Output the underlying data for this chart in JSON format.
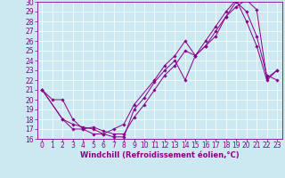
{
  "xlabel": "Windchill (Refroidissement éolien,°C)",
  "bg_color": "#cce8f0",
  "line_color": "#880088",
  "xlim": [
    -0.5,
    23.5
  ],
  "ylim": [
    16,
    30
  ],
  "xticks": [
    0,
    1,
    2,
    3,
    4,
    5,
    6,
    7,
    8,
    9,
    10,
    11,
    12,
    13,
    14,
    15,
    16,
    17,
    18,
    19,
    20,
    21,
    22,
    23
  ],
  "yticks": [
    16,
    17,
    18,
    19,
    20,
    21,
    22,
    23,
    24,
    25,
    26,
    27,
    28,
    29,
    30
  ],
  "line1_x": [
    0,
    1,
    2,
    3,
    4,
    5,
    6,
    7,
    8,
    9,
    10,
    11,
    12,
    13,
    14,
    15,
    16,
    17,
    18,
    19,
    20,
    21,
    22,
    23
  ],
  "line1_y": [
    21.0,
    20.0,
    20.0,
    18.0,
    17.0,
    16.5,
    16.5,
    16.2,
    16.2,
    19.0,
    20.2,
    21.8,
    23.0,
    24.0,
    22.0,
    24.5,
    25.5,
    26.5,
    28.5,
    29.5,
    30.2,
    29.2,
    22.2,
    23.0
  ],
  "line2_x": [
    0,
    2,
    3,
    4,
    5,
    6,
    7,
    8,
    9,
    10,
    11,
    12,
    13,
    14,
    15,
    16,
    17,
    18,
    19,
    20,
    21,
    22,
    23
  ],
  "line2_y": [
    21.0,
    18.0,
    17.0,
    17.0,
    17.2,
    16.8,
    16.5,
    16.5,
    18.2,
    19.5,
    21.0,
    22.5,
    23.5,
    25.0,
    24.5,
    26.0,
    27.5,
    29.0,
    30.2,
    28.0,
    25.5,
    22.0,
    23.0
  ],
  "line3_x": [
    0,
    2,
    3,
    4,
    5,
    6,
    7,
    8,
    9,
    11,
    12,
    13,
    14,
    15,
    16,
    17,
    18,
    19,
    20,
    21,
    22,
    23
  ],
  "line3_y": [
    21.0,
    18.0,
    17.5,
    17.2,
    17.0,
    16.5,
    17.0,
    17.5,
    19.5,
    22.0,
    23.5,
    24.5,
    26.0,
    24.5,
    25.5,
    27.0,
    28.5,
    30.0,
    29.0,
    26.5,
    22.5,
    22.0
  ],
  "tick_fontsize": 5.5,
  "label_fontsize": 6.0
}
